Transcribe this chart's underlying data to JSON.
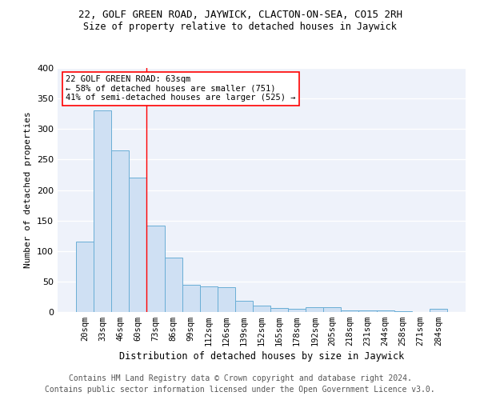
{
  "title1": "22, GOLF GREEN ROAD, JAYWICK, CLACTON-ON-SEA, CO15 2RH",
  "title2": "Size of property relative to detached houses in Jaywick",
  "xlabel": "Distribution of detached houses by size in Jaywick",
  "ylabel": "Number of detached properties",
  "categories": [
    "20sqm",
    "33sqm",
    "46sqm",
    "60sqm",
    "73sqm",
    "86sqm",
    "99sqm",
    "112sqm",
    "126sqm",
    "139sqm",
    "152sqm",
    "165sqm",
    "178sqm",
    "192sqm",
    "205sqm",
    "218sqm",
    "231sqm",
    "244sqm",
    "258sqm",
    "271sqm",
    "284sqm"
  ],
  "values": [
    116,
    330,
    265,
    220,
    141,
    89,
    45,
    42,
    41,
    19,
    10,
    7,
    5,
    8,
    8,
    3,
    3,
    3,
    1,
    0,
    5
  ],
  "bar_color": "#cfe0f3",
  "bar_edge_color": "#6aaed6",
  "red_line_x": 3.5,
  "annotation_text": "22 GOLF GREEN ROAD: 63sqm\n← 58% of detached houses are smaller (751)\n41% of semi-detached houses are larger (525) →",
  "footnote1": "Contains HM Land Registry data © Crown copyright and database right 2024.",
  "footnote2": "Contains public sector information licensed under the Open Government Licence v3.0.",
  "ylim": [
    0,
    400
  ],
  "yticks": [
    0,
    50,
    100,
    150,
    200,
    250,
    300,
    350,
    400
  ],
  "background_color": "#eef2fa",
  "grid_color": "white"
}
